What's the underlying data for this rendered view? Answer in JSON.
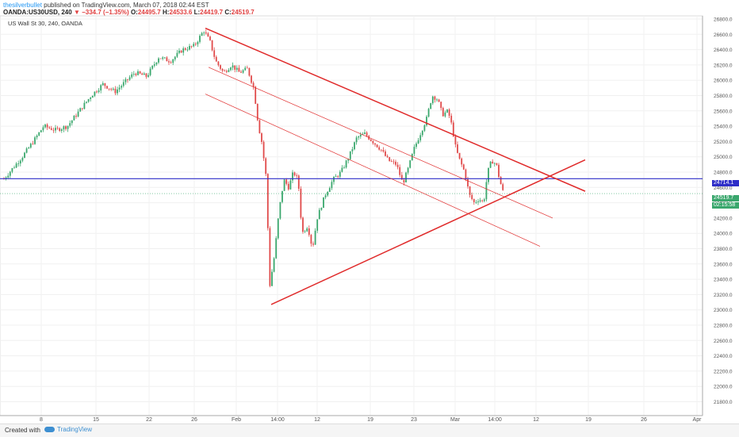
{
  "header": {
    "author": "thesilverbullet",
    "published": "published on TradingView.com, March 07, 2018 02:44 EST",
    "symbol": "OANDA:US30USD, 240",
    "change": "−334.7 (−1.35%)",
    "o_label": "O:",
    "o": "24495.7",
    "h_label": "H:",
    "h": "24533.6",
    "l_label": "L:",
    "l": "24419.7",
    "c_label": "C:",
    "c": "24519.7",
    "subtitle": "US Wall St 30, 240, OANDA"
  },
  "price_tags": {
    "blue_level": "24714.1",
    "last_price": "24519.7",
    "countdown": "02:15:58"
  },
  "footer": {
    "created_with": "Created with",
    "brand": "TradingView"
  },
  "colors": {
    "up": "#3aa76d",
    "down": "#e04a4a",
    "trend": "#e02b2b",
    "hline": "#2e2ec8"
  },
  "chart_data": {
    "type": "candlestick",
    "ylim": [
      21400,
      26900
    ],
    "y_ticks": [
      "21800.0",
      "22000.0",
      "22200.0",
      "22400.0",
      "22600.0",
      "22800.0",
      "23000.0",
      "23200.0",
      "23400.0",
      "23600.0",
      "23800.0",
      "24000.0",
      "24200.0",
      "24400.0",
      "24600.0",
      "24800.0",
      "25000.0",
      "25200.0",
      "25400.0",
      "25600.0",
      "25800.0",
      "26000.0",
      "26200.0",
      "26400.0",
      "26600.0",
      "26800.0"
    ],
    "x_ticks": [
      "8",
      "15",
      "22",
      "26",
      "Feb",
      "14:00",
      "12",
      "19",
      "23",
      "Mar",
      "14:00",
      "12",
      "19",
      "26",
      "Apr"
    ],
    "horizontal_line": 24714.1,
    "last_price": 24519.7,
    "close_path": [
      {
        "x": 0,
        "y": 24650
      },
      {
        "x": 12,
        "y": 24800
      },
      {
        "x": 28,
        "y": 25000
      },
      {
        "x": 42,
        "y": 25200
      },
      {
        "x": 55,
        "y": 25400
      },
      {
        "x": 70,
        "y": 25350
      },
      {
        "x": 85,
        "y": 25400
      },
      {
        "x": 100,
        "y": 25600
      },
      {
        "x": 115,
        "y": 25800
      },
      {
        "x": 130,
        "y": 25950
      },
      {
        "x": 145,
        "y": 25850
      },
      {
        "x": 160,
        "y": 26000
      },
      {
        "x": 170,
        "y": 26100
      },
      {
        "x": 185,
        "y": 26050
      },
      {
        "x": 200,
        "y": 26300
      },
      {
        "x": 215,
        "y": 26250
      },
      {
        "x": 230,
        "y": 26400
      },
      {
        "x": 245,
        "y": 26450
      },
      {
        "x": 257,
        "y": 26650
      },
      {
        "x": 265,
        "y": 26500
      },
      {
        "x": 272,
        "y": 26250
      },
      {
        "x": 282,
        "y": 26100
      },
      {
        "x": 292,
        "y": 26200
      },
      {
        "x": 302,
        "y": 26100
      },
      {
        "x": 312,
        "y": 26150
      },
      {
        "x": 320,
        "y": 25900
      },
      {
        "x": 326,
        "y": 25400
      },
      {
        "x": 330,
        "y": 25200
      },
      {
        "x": 336,
        "y": 24700
      },
      {
        "x": 340,
        "y": 23300
      },
      {
        "x": 346,
        "y": 23700
      },
      {
        "x": 352,
        "y": 24300
      },
      {
        "x": 358,
        "y": 24700
      },
      {
        "x": 364,
        "y": 24600
      },
      {
        "x": 370,
        "y": 24800
      },
      {
        "x": 376,
        "y": 24700
      },
      {
        "x": 381,
        "y": 24000
      },
      {
        "x": 388,
        "y": 24100
      },
      {
        "x": 394,
        "y": 23800
      },
      {
        "x": 400,
        "y": 24200
      },
      {
        "x": 410,
        "y": 24500
      },
      {
        "x": 420,
        "y": 24700
      },
      {
        "x": 430,
        "y": 24800
      },
      {
        "x": 440,
        "y": 25000
      },
      {
        "x": 450,
        "y": 25250
      },
      {
        "x": 460,
        "y": 25300
      },
      {
        "x": 470,
        "y": 25200
      },
      {
        "x": 480,
        "y": 25100
      },
      {
        "x": 490,
        "y": 24950
      },
      {
        "x": 500,
        "y": 24900
      },
      {
        "x": 508,
        "y": 24650
      },
      {
        "x": 515,
        "y": 24850
      },
      {
        "x": 522,
        "y": 25100
      },
      {
        "x": 530,
        "y": 25300
      },
      {
        "x": 538,
        "y": 25500
      },
      {
        "x": 545,
        "y": 25800
      },
      {
        "x": 552,
        "y": 25750
      },
      {
        "x": 558,
        "y": 25550
      },
      {
        "x": 565,
        "y": 25600
      },
      {
        "x": 570,
        "y": 25400
      },
      {
        "x": 575,
        "y": 25100
      },
      {
        "x": 580,
        "y": 24950
      },
      {
        "x": 586,
        "y": 24800
      },
      {
        "x": 592,
        "y": 24500
      },
      {
        "x": 598,
        "y": 24400
      },
      {
        "x": 604,
        "y": 24450
      },
      {
        "x": 610,
        "y": 24400
      },
      {
        "x": 615,
        "y": 24800
      },
      {
        "x": 620,
        "y": 24950
      },
      {
        "x": 626,
        "y": 24900
      },
      {
        "x": 630,
        "y": 24700
      },
      {
        "x": 635,
        "y": 24520
      }
    ],
    "trendlines": [
      {
        "from": {
          "x": 259,
          "y": 26680
        },
        "to": {
          "x": 738,
          "y": 24550
        },
        "weight": "thick"
      },
      {
        "from": {
          "x": 342,
          "y": 23070
        },
        "to": {
          "x": 738,
          "y": 24960
        },
        "weight": "thick"
      },
      {
        "from": {
          "x": 263,
          "y": 26170
        },
        "to": {
          "x": 697,
          "y": 24200
        },
        "weight": "thin"
      },
      {
        "from": {
          "x": 259,
          "y": 25820
        },
        "to": {
          "x": 681,
          "y": 23830
        },
        "weight": "thin"
      }
    ]
  }
}
